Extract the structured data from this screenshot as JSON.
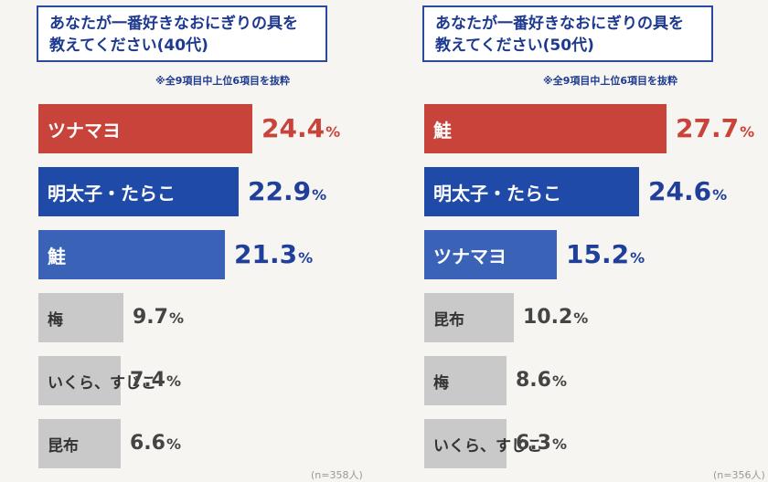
{
  "panels": [
    {
      "title_lines": [
        "あなたが一番好きなおにぎりの具を",
        "教えてください(40代)"
      ],
      "note": "※全9項目中上位6項目を抜粋",
      "sample": "(n=358人)"
    },
    {
      "title_lines": [
        "あなたが一番好きなおにぎりの具を",
        "教えてください(50代)"
      ],
      "note": "※全9項目中上位6項目を抜粋",
      "sample": "(n=356人)"
    }
  ],
  "chart_data": [
    {
      "type": "bar",
      "orientation": "horizontal",
      "title": "あなたが一番好きなおにぎりの具を教えてください(40代)",
      "categories": [
        "ツナマヨ",
        "明太子・たらこ",
        "鮭",
        "梅",
        "いくら、すじこ",
        "昆布"
      ],
      "values": [
        24.4,
        22.9,
        21.3,
        9.7,
        7.4,
        6.6
      ],
      "value_labels": [
        "24.4",
        "22.9",
        "21.3",
        "9.7",
        "7.4",
        "6.6"
      ],
      "unit": "%",
      "colors": [
        "#c8433a",
        "#1f4aa8",
        "#3a63b8",
        "#c9c9c9",
        "#c9c9c9",
        "#c9c9c9"
      ]
    },
    {
      "type": "bar",
      "orientation": "horizontal",
      "title": "あなたが一番好きなおにぎりの具を教えてください(50代)",
      "categories": [
        "鮭",
        "明太子・たらこ",
        "ツナマヨ",
        "昆布",
        "梅",
        "いくら、すじこ"
      ],
      "values": [
        27.7,
        24.6,
        15.2,
        10.2,
        8.6,
        6.3
      ],
      "value_labels": [
        "27.7",
        "24.6",
        "15.2",
        "10.2",
        "8.6",
        "6.3"
      ],
      "unit": "%",
      "colors": [
        "#c8433a",
        "#1f4aa8",
        "#3a63b8",
        "#c9c9c9",
        "#c9c9c9",
        "#c9c9c9"
      ]
    }
  ]
}
